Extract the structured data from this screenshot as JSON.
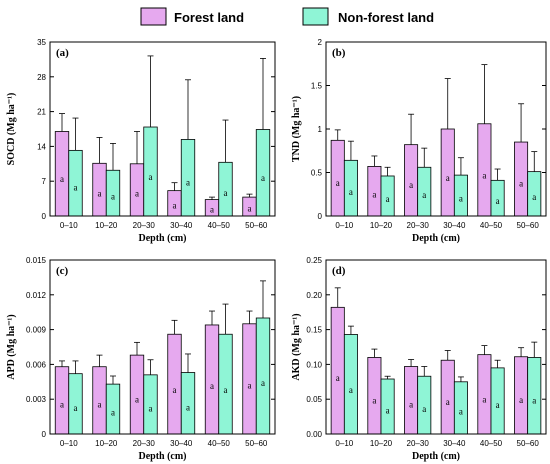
{
  "legend": [
    {
      "name": "Forest land",
      "color": "#e6a9ef"
    },
    {
      "name": "Non-forest land",
      "color": "#8ff5d6"
    }
  ],
  "chart_data": [
    {
      "type": "bar",
      "panel": "(a)",
      "categories": [
        "0–10",
        "10–20",
        "20–30",
        "30–40",
        "40–50",
        "50–60"
      ],
      "xlabel": "Depth (cm)",
      "ylabel": "SOCD (Mg ha⁻¹)",
      "ylim": [
        0,
        35
      ],
      "yticks": [
        0,
        7,
        14,
        21,
        28,
        35
      ],
      "ytick_labels": [
        "0",
        "7",
        "14",
        "21",
        "28",
        "35"
      ],
      "series": [
        {
          "name": "Forest land",
          "values": [
            17.0,
            10.6,
            10.5,
            5.1,
            3.3,
            3.8
          ],
          "errors": [
            3.6,
            5.2,
            6.5,
            1.6,
            0.5,
            0.6
          ],
          "labels": [
            "a",
            "a",
            "a",
            "a",
            "a",
            "a"
          ]
        },
        {
          "name": "Non-forest land",
          "values": [
            13.2,
            9.2,
            17.9,
            15.4,
            10.8,
            17.4
          ],
          "errors": [
            6.5,
            5.4,
            14.3,
            12.0,
            8.5,
            14.3
          ],
          "labels": [
            "a",
            "a",
            "a",
            "a",
            "a",
            "a"
          ]
        }
      ]
    },
    {
      "type": "bar",
      "panel": "(b)",
      "categories": [
        "0–10",
        "10–20",
        "20–30",
        "30–40",
        "40–50",
        "50–60"
      ],
      "xlabel": "Depth (cm)",
      "ylabel": "TND (Mg ha⁻¹)",
      "ylim": [
        0,
        2
      ],
      "yticks": [
        0,
        0.5,
        1,
        1.5,
        2
      ],
      "ytick_labels": [
        "0",
        "0.5",
        "1",
        "1.5",
        "2"
      ],
      "series": [
        {
          "name": "Forest land",
          "values": [
            0.87,
            0.57,
            0.82,
            1.0,
            1.06,
            0.85
          ],
          "errors": [
            0.12,
            0.12,
            0.35,
            0.58,
            0.68,
            0.44
          ],
          "labels": [
            "a",
            "a",
            "a",
            "a",
            "a",
            "a"
          ]
        },
        {
          "name": "Non-forest land",
          "values": [
            0.64,
            0.46,
            0.56,
            0.47,
            0.41,
            0.51
          ],
          "errors": [
            0.22,
            0.1,
            0.22,
            0.2,
            0.13,
            0.23
          ],
          "labels": [
            "a",
            "a",
            "a",
            "a",
            "a",
            "a"
          ]
        }
      ]
    },
    {
      "type": "bar",
      "panel": "(c)",
      "categories": [
        "0–10",
        "10–20",
        "20–30",
        "30–40",
        "40–50",
        "50–60"
      ],
      "xlabel": "Depth (cm)",
      "ylabel": "APD (Mg ha⁻¹)",
      "ylim": [
        0,
        0.015
      ],
      "yticks": [
        0,
        0.003,
        0.006,
        0.009,
        0.012,
        0.015
      ],
      "ytick_labels": [
        "0",
        "0.003",
        "0.006",
        "0.009",
        "0.012",
        "0.015"
      ],
      "series": [
        {
          "name": "Forest land",
          "values": [
            0.0058,
            0.0058,
            0.0068,
            0.0086,
            0.0094,
            0.0095
          ],
          "errors": [
            0.0005,
            0.001,
            0.0011,
            0.0012,
            0.0012,
            0.0011
          ],
          "labels": [
            "a",
            "a",
            "a",
            "a",
            "a",
            "a"
          ]
        },
        {
          "name": "Non-forest land",
          "values": [
            0.0052,
            0.0043,
            0.0051,
            0.0053,
            0.0086,
            0.01
          ],
          "errors": [
            0.0011,
            0.0007,
            0.0013,
            0.0016,
            0.0026,
            0.0032
          ],
          "labels": [
            "a",
            "a",
            "a",
            "a",
            "a",
            "a"
          ]
        }
      ]
    },
    {
      "type": "bar",
      "panel": "(d)",
      "categories": [
        "0–10",
        "10–20",
        "20–30",
        "30–40",
        "40–50",
        "50–60"
      ],
      "xlabel": "Depth (cm)",
      "ylabel": "AKD (Mg ha⁻¹)",
      "ylim": [
        0,
        0.25
      ],
      "yticks": [
        0,
        0.05,
        0.1,
        0.15,
        0.2,
        0.25
      ],
      "ytick_labels": [
        "0.00",
        "0.05",
        "0.10",
        "0.15",
        "0.20",
        "0.25"
      ],
      "series": [
        {
          "name": "Forest land",
          "values": [
            0.182,
            0.11,
            0.097,
            0.106,
            0.114,
            0.111
          ],
          "errors": [
            0.028,
            0.012,
            0.01,
            0.014,
            0.013,
            0.013
          ],
          "labels": [
            "a",
            "a",
            "a",
            "a",
            "a",
            "a"
          ]
        },
        {
          "name": "Non-forest land",
          "values": [
            0.143,
            0.079,
            0.083,
            0.075,
            0.095,
            0.11
          ],
          "errors": [
            0.012,
            0.004,
            0.014,
            0.007,
            0.011,
            0.022
          ],
          "labels": [
            "a",
            "a",
            "a",
            "a",
            "a",
            "a"
          ]
        }
      ]
    }
  ]
}
